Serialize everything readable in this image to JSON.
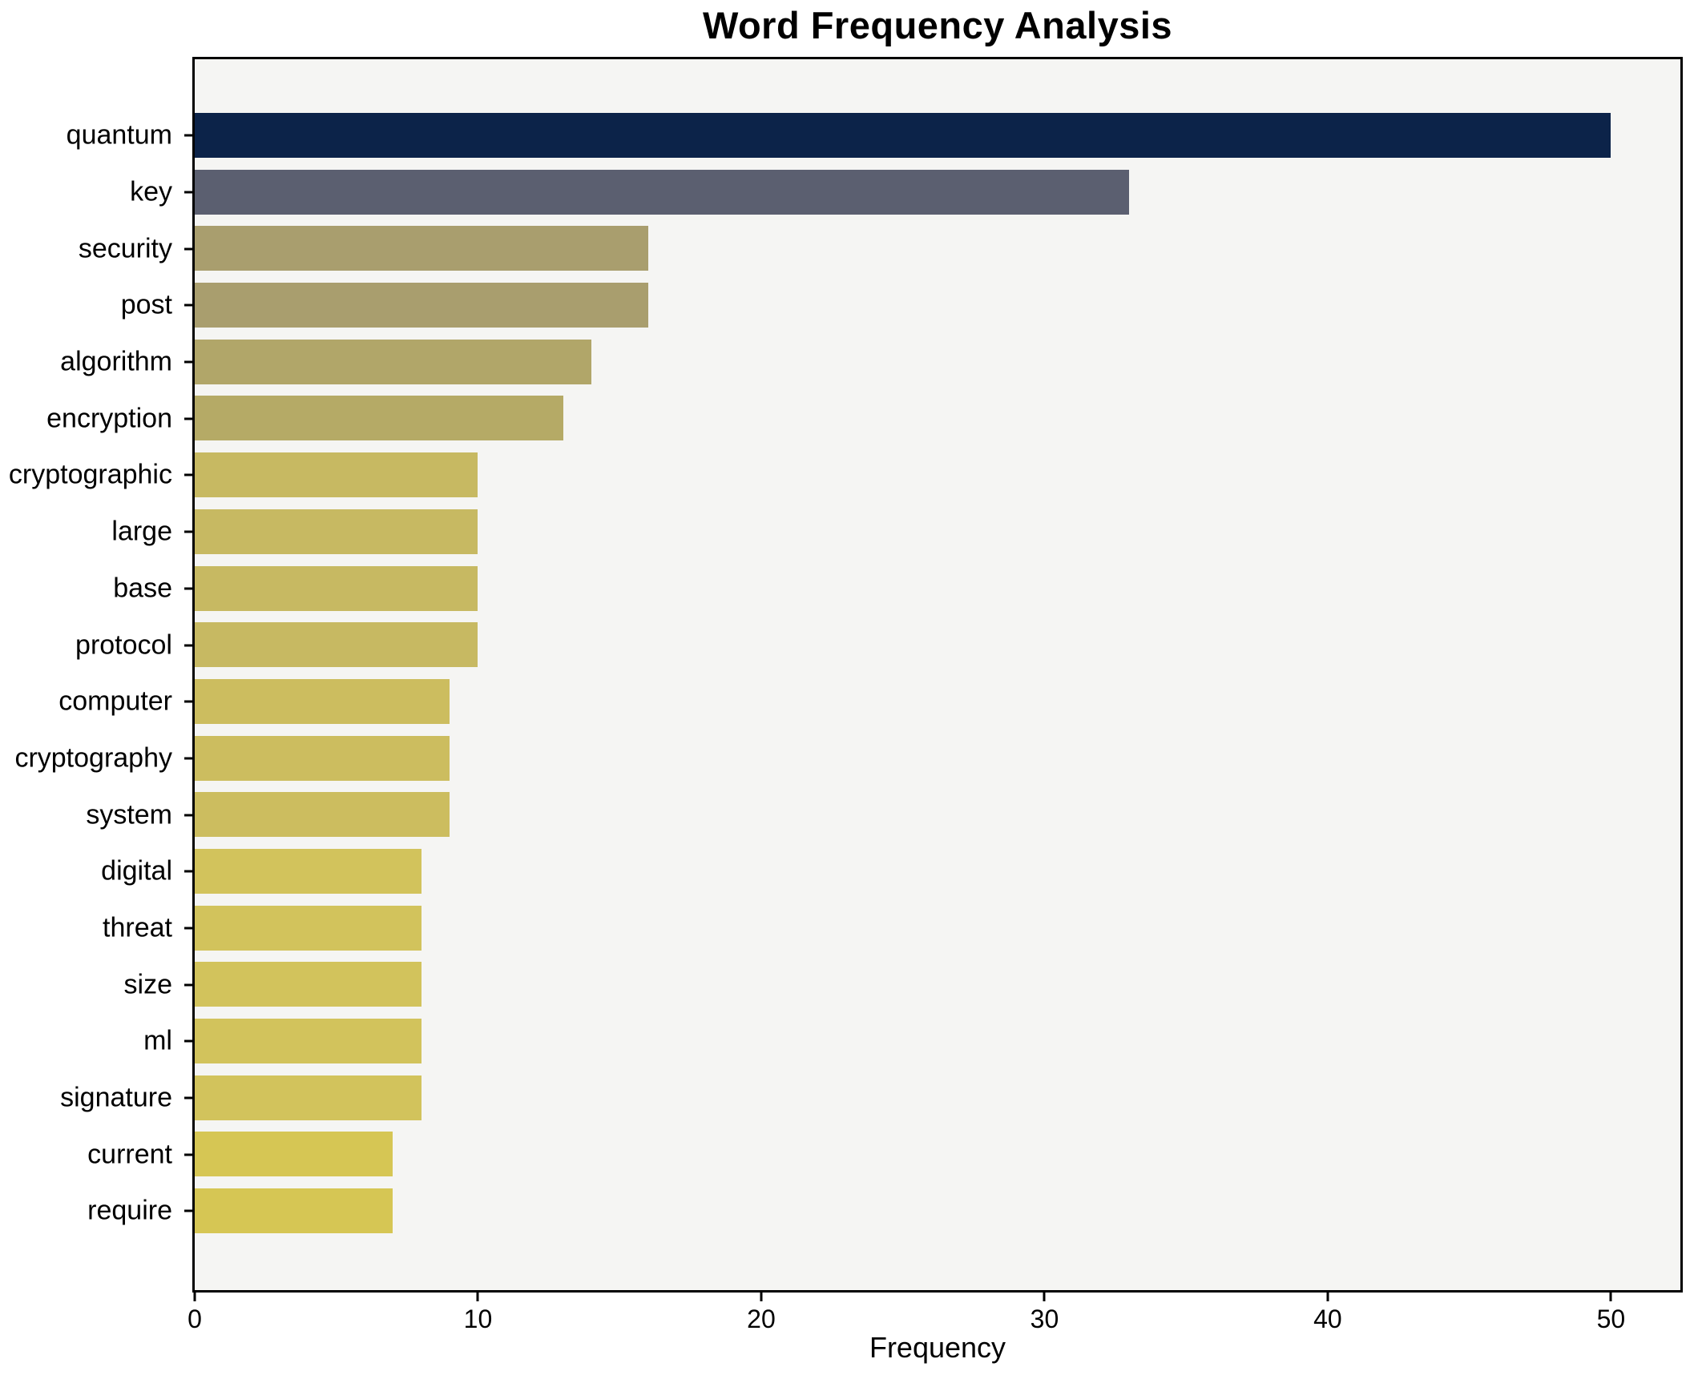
{
  "chart": {
    "title": "Word Frequency Analysis",
    "xlabel": "Frequency"
  },
  "chart_data": {
    "type": "bar",
    "orientation": "horizontal",
    "title": "Word Frequency Analysis",
    "xlabel": "Frequency",
    "ylabel": "",
    "categories": [
      "quantum",
      "key",
      "security",
      "post",
      "algorithm",
      "encryption",
      "cryptographic",
      "large",
      "base",
      "protocol",
      "computer",
      "cryptography",
      "system",
      "digital",
      "threat",
      "size",
      "ml",
      "signature",
      "current",
      "require"
    ],
    "values": [
      50,
      33,
      16,
      16,
      14,
      13,
      10,
      10,
      10,
      10,
      9,
      9,
      9,
      8,
      8,
      8,
      8,
      8,
      7,
      7
    ],
    "colors": [
      "#0c2349",
      "#5b5f70",
      "#a99e6e",
      "#a99e6e",
      "#b1a669",
      "#b5aa66",
      "#c7b962",
      "#c7b962",
      "#c7b962",
      "#c7b962",
      "#ccbd5f",
      "#ccbd5f",
      "#ccbd5f",
      "#d2c35c",
      "#d2c35c",
      "#d2c35c",
      "#d2c35c",
      "#d2c35c",
      "#d6c654",
      "#d6c654"
    ],
    "xticks": [
      0,
      10,
      20,
      30,
      40,
      50
    ],
    "xlim": [
      0,
      52.45
    ],
    "grid": false,
    "legend": false,
    "plot_background": "#f5f5f3",
    "figure_background": "#ffffff",
    "frame_color": "#000000"
  }
}
